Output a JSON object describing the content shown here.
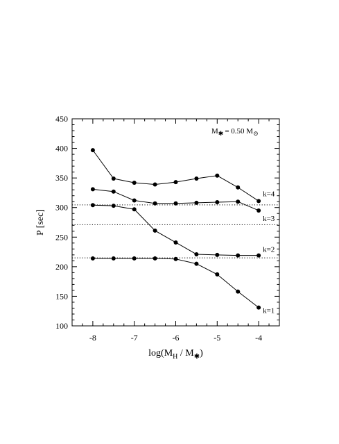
{
  "chart_data": {
    "type": "line",
    "xlabel_parts": {
      "base": "log(M",
      "sub1": "H",
      "mid": " / M",
      "sub2": "✱",
      "end": ")"
    },
    "ylabel": "P  [sec]",
    "xlim": [
      -8.5,
      -3.5
    ],
    "ylim": [
      100,
      450
    ],
    "xticks": [
      -8,
      -7,
      -6,
      -5,
      -4
    ],
    "yticks": [
      100,
      150,
      200,
      250,
      300,
      350,
      400,
      450
    ],
    "x": [
      -8,
      -7.5,
      -7,
      -6.5,
      -6,
      -5.5,
      -5,
      -4.5,
      -4
    ],
    "series": [
      {
        "name": "k=4",
        "values": [
          397,
          349,
          342,
          339,
          343,
          349,
          354,
          334,
          311
        ]
      },
      {
        "name": "k=3",
        "values": [
          331,
          327,
          312,
          307,
          307,
          308,
          309,
          310,
          295
        ]
      },
      {
        "name": "k=2",
        "values": [
          304,
          303,
          297,
          261,
          241,
          221,
          220,
          219,
          219
        ]
      },
      {
        "name": "k=1",
        "values": [
          214,
          214,
          214,
          214,
          213,
          205,
          187,
          158,
          131
        ]
      }
    ],
    "reference_lines": [
      304.5,
      271,
      215
    ],
    "annotation": {
      "prefix": "M",
      "sub1": "✱",
      "middle": "= 0.50 M",
      "sub2": "⊙"
    },
    "grid": false
  }
}
